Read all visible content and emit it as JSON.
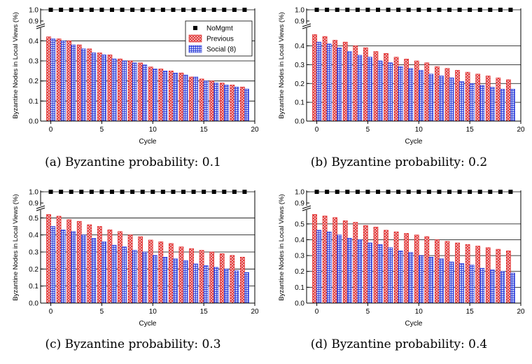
{
  "chart_data": [
    {
      "type": "bar",
      "caption": "(a) Byzantine probability: 0.1",
      "xlabel": "Cycle",
      "ylabel": "Byzantine Nodes in Local Views (%)",
      "x": [
        0,
        1,
        2,
        3,
        4,
        5,
        6,
        7,
        8,
        9,
        10,
        11,
        12,
        13,
        14,
        15,
        16,
        17,
        18,
        19
      ],
      "xlim": [
        -1,
        20
      ],
      "xticks": [
        "0",
        "5",
        "10",
        "15",
        "20"
      ],
      "ylim": [
        0,
        0.45
      ],
      "yticks": [
        "0.0",
        "0.1",
        "0.2",
        "0.3",
        "0.4"
      ],
      "ybreak_ticks": [
        "0.9",
        "1.0"
      ],
      "legend": "top-right",
      "series": [
        {
          "name": "NoMgmt",
          "values": [
            1,
            1,
            1,
            1,
            1,
            1,
            1,
            1,
            1,
            1,
            1,
            1,
            1,
            1,
            1,
            1,
            1,
            1,
            1,
            1
          ]
        },
        {
          "name": "Previous",
          "values": [
            0.42,
            0.41,
            0.4,
            0.38,
            0.36,
            0.34,
            0.33,
            0.31,
            0.3,
            0.29,
            0.27,
            0.26,
            0.25,
            0.24,
            0.22,
            0.21,
            0.2,
            0.19,
            0.18,
            0.17
          ]
        },
        {
          "name": "Social (8)",
          "values": [
            0.41,
            0.4,
            0.38,
            0.36,
            0.34,
            0.33,
            0.31,
            0.3,
            0.29,
            0.28,
            0.26,
            0.25,
            0.24,
            0.23,
            0.22,
            0.2,
            0.19,
            0.18,
            0.17,
            0.16
          ]
        }
      ]
    },
    {
      "type": "bar",
      "caption": "(b) Byzantine probability: 0.2",
      "xlabel": "Cycle",
      "ylabel": "Byzantine Nodes in Local Views (%)",
      "x": [
        0,
        1,
        2,
        3,
        4,
        5,
        6,
        7,
        8,
        9,
        10,
        11,
        12,
        13,
        14,
        15,
        16,
        17,
        18,
        19
      ],
      "xlim": [
        -1,
        20
      ],
      "xticks": [
        "0",
        "5",
        "10",
        "15",
        "20"
      ],
      "ylim": [
        0,
        0.48
      ],
      "yticks": [
        "0.0",
        "0.1",
        "0.2",
        "0.3",
        "0.4"
      ],
      "ybreak_ticks": [
        "0.9",
        "1.0"
      ],
      "series": [
        {
          "name": "NoMgmt",
          "values": [
            1,
            1,
            1,
            1,
            1,
            1,
            1,
            1,
            1,
            1,
            1,
            1,
            1,
            1,
            1,
            1,
            1,
            1,
            1,
            1
          ]
        },
        {
          "name": "Previous",
          "values": [
            0.46,
            0.45,
            0.43,
            0.42,
            0.4,
            0.39,
            0.37,
            0.36,
            0.34,
            0.33,
            0.32,
            0.31,
            0.29,
            0.28,
            0.27,
            0.26,
            0.25,
            0.24,
            0.23,
            0.22
          ]
        },
        {
          "name": "Social (8)",
          "values": [
            0.42,
            0.41,
            0.39,
            0.37,
            0.35,
            0.34,
            0.32,
            0.31,
            0.29,
            0.28,
            0.27,
            0.25,
            0.24,
            0.23,
            0.21,
            0.2,
            0.19,
            0.18,
            0.17,
            0.17
          ]
        }
      ]
    },
    {
      "type": "bar",
      "caption": "(c) Byzantine probability: 0.3",
      "xlabel": "Cycle",
      "ylabel": "Byzantine Nodes in Local Views (%)",
      "x": [
        0,
        1,
        2,
        3,
        4,
        5,
        6,
        7,
        8,
        9,
        10,
        11,
        12,
        13,
        14,
        15,
        16,
        17,
        18,
        19
      ],
      "xlim": [
        -1,
        20
      ],
      "xticks": [
        "0",
        "5",
        "10",
        "15",
        "20"
      ],
      "ylim": [
        0,
        0.53
      ],
      "yticks": [
        "0.0",
        "0.1",
        "0.2",
        "0.3",
        "0.4",
        "0.5"
      ],
      "ybreak_ticks": [
        "0.9",
        "1.0"
      ],
      "series": [
        {
          "name": "NoMgmt",
          "values": [
            1,
            1,
            1,
            1,
            1,
            1,
            1,
            1,
            1,
            1,
            1,
            1,
            1,
            1,
            1,
            1,
            1,
            1,
            1,
            1
          ]
        },
        {
          "name": "Previous",
          "values": [
            0.52,
            0.51,
            0.49,
            0.48,
            0.46,
            0.45,
            0.43,
            0.42,
            0.4,
            0.39,
            0.37,
            0.36,
            0.35,
            0.33,
            0.32,
            0.31,
            0.3,
            0.29,
            0.28,
            0.27
          ]
        },
        {
          "name": "Social (8)",
          "values": [
            0.45,
            0.43,
            0.42,
            0.4,
            0.38,
            0.36,
            0.34,
            0.33,
            0.31,
            0.3,
            0.28,
            0.27,
            0.26,
            0.25,
            0.23,
            0.22,
            0.21,
            0.2,
            0.19,
            0.18
          ]
        }
      ]
    },
    {
      "type": "bar",
      "caption": "(d) Byzantine probability: 0.4",
      "xlabel": "Cycle",
      "ylabel": "Byzantine Nodes in Local Views (%)",
      "x": [
        0,
        1,
        2,
        3,
        4,
        5,
        6,
        7,
        8,
        9,
        10,
        11,
        12,
        13,
        14,
        15,
        16,
        17,
        18,
        19
      ],
      "xlim": [
        -1,
        20
      ],
      "xticks": [
        "0",
        "5",
        "10",
        "15",
        "20"
      ],
      "ylim": [
        0,
        0.57
      ],
      "yticks": [
        "0.0",
        "0.1",
        "0.2",
        "0.3",
        "0.4",
        "0.5"
      ],
      "ybreak_ticks": [
        "0.9",
        "1.0"
      ],
      "series": [
        {
          "name": "NoMgmt",
          "values": [
            1,
            1,
            1,
            1,
            1,
            1,
            1,
            1,
            1,
            1,
            1,
            1,
            1,
            1,
            1,
            1,
            1,
            1,
            1,
            1
          ]
        },
        {
          "name": "Previous",
          "values": [
            0.56,
            0.55,
            0.54,
            0.52,
            0.51,
            0.49,
            0.48,
            0.46,
            0.45,
            0.44,
            0.43,
            0.42,
            0.4,
            0.39,
            0.38,
            0.37,
            0.36,
            0.35,
            0.34,
            0.33
          ]
        },
        {
          "name": "Social (8)",
          "values": [
            0.46,
            0.45,
            0.43,
            0.41,
            0.4,
            0.38,
            0.37,
            0.35,
            0.33,
            0.32,
            0.3,
            0.29,
            0.28,
            0.26,
            0.25,
            0.24,
            0.22,
            0.21,
            0.2,
            0.19
          ]
        }
      ]
    }
  ],
  "colors": {
    "previous_fill": "#f4c8c8",
    "previous_pattern": "#e02020",
    "social_fill": "#c8d2f4",
    "social_pattern": "#2030d8",
    "nomgmt_marker": "#000000"
  }
}
